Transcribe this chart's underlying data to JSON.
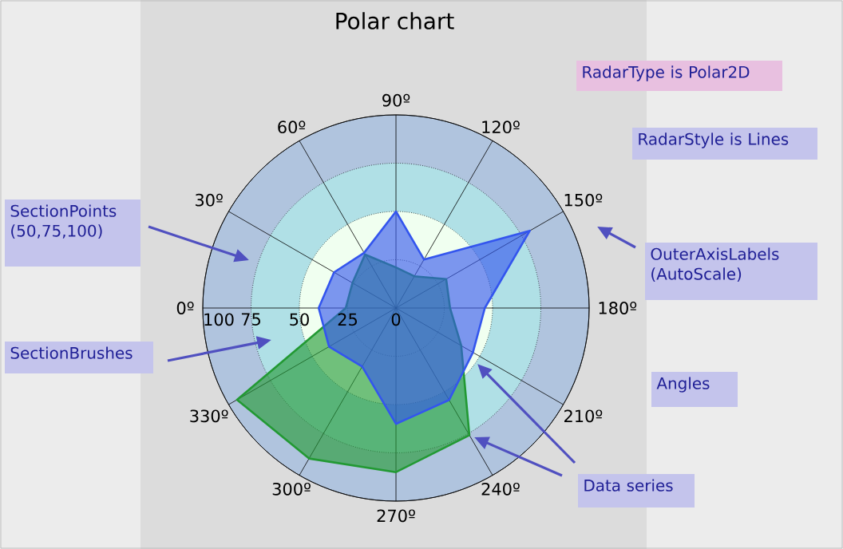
{
  "chart_data": {
    "type": "radar",
    "title": "Polar chart",
    "categories": [
      "90º",
      "120º",
      "150º",
      "180º",
      "210º",
      "240º",
      "270º",
      "300º",
      "330º",
      "0º",
      "30º",
      "60º"
    ],
    "series": [
      {
        "color": "#229933",
        "values": [
          21,
          19,
          30,
          28,
          39,
          76,
          85,
          90,
          95,
          26,
          26,
          32
        ]
      },
      {
        "color": "#3355ee",
        "values": [
          50,
          29,
          80,
          46,
          46,
          55,
          60,
          35,
          40,
          40,
          37,
          33
        ]
      }
    ],
    "ylim": [
      0,
      100
    ],
    "yticks": [
      0,
      25,
      50,
      75,
      100
    ],
    "grid": true,
    "annotations": [
      "RadarType is Polar2D",
      "RadarStyle is Lines",
      "SectionPoints (50,75,100)",
      "OuterAxisLabels (AutoScale)",
      "SectionBrushes",
      "Angles",
      "Data series"
    ]
  }
}
